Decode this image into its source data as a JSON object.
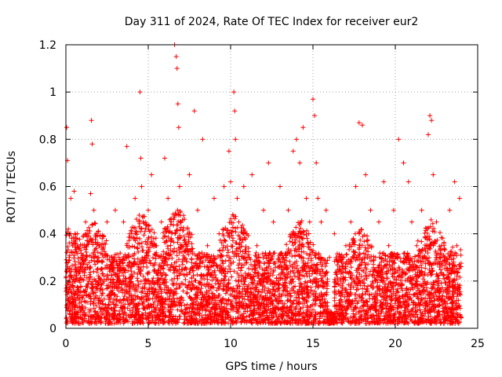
{
  "chart_data": {
    "type": "scatter",
    "title": "Day 311 of 2024, Rate Of TEC Index for receiver eur2",
    "xlabel": "GPS time / hours",
    "ylabel": "ROTI / TECUs",
    "xlim": [
      0,
      25
    ],
    "ylim": [
      0,
      1.2
    ],
    "x_ticks": [
      0,
      5,
      10,
      15,
      20,
      25
    ],
    "y_ticks": [
      0,
      0.2,
      0.4,
      0.6,
      0.8,
      1,
      1.2
    ],
    "x_tick_labels": [
      "0",
      "5",
      "10",
      "15",
      "20",
      "25"
    ],
    "y_tick_labels": [
      "0",
      "0.2",
      "0.4",
      "0.6",
      "0.8",
      "1",
      "1.2"
    ],
    "grid": true,
    "marker": "+",
    "series": [
      {
        "name": "eur2",
        "color": "#ff0000",
        "x": [
          0.05,
          0.1,
          0.15,
          0.2,
          0.25,
          0.3,
          0.35,
          0.4,
          0.5,
          0.6,
          0.7,
          0.8,
          1.0,
          1.2,
          1.5,
          1.55,
          1.6,
          1.7,
          1.8,
          2.0,
          2.2,
          2.5,
          2.8,
          3.0,
          3.2,
          3.5,
          3.7,
          3.8,
          4.0,
          4.2,
          4.4,
          4.5,
          4.55,
          4.6,
          4.7,
          4.8,
          5.0,
          5.2,
          5.5,
          5.8,
          6.0,
          6.2,
          6.4,
          6.6,
          6.7,
          6.75,
          6.8,
          6.85,
          6.9,
          7.0,
          7.2,
          7.5,
          7.8,
          8.0,
          8.3,
          8.6,
          9.0,
          9.3,
          9.6,
          9.9,
          10.0,
          10.2,
          10.25,
          10.3,
          10.4,
          10.5,
          10.8,
          11.0,
          11.3,
          11.6,
          12.0,
          12.3,
          12.6,
          13.0,
          13.2,
          13.5,
          13.8,
          14.0,
          14.2,
          14.4,
          14.6,
          14.8,
          15.0,
          15.1,
          15.2,
          15.3,
          15.5,
          15.8,
          16.0,
          16.3,
          16.6,
          17.0,
          17.3,
          17.6,
          17.8,
          18.0,
          18.2,
          18.5,
          18.8,
          19.0,
          19.3,
          19.6,
          19.9,
          20.2,
          20.5,
          20.8,
          21.0,
          21.3,
          21.6,
          22.0,
          22.1,
          22.2,
          22.3,
          22.5,
          22.8,
          23.0,
          23.3,
          23.6,
          23.9
        ],
        "y": [
          0.85,
          0.71,
          0.42,
          0.3,
          0.22,
          0.55,
          0.15,
          0.35,
          0.58,
          0.25,
          0.4,
          0.12,
          0.3,
          0.45,
          0.57,
          0.88,
          0.78,
          0.5,
          0.2,
          0.35,
          0.28,
          0.45,
          0.3,
          0.5,
          0.2,
          0.45,
          0.77,
          0.3,
          0.4,
          0.55,
          0.25,
          1.0,
          0.72,
          0.6,
          0.45,
          0.3,
          0.5,
          0.65,
          0.35,
          0.45,
          0.72,
          0.55,
          0.38,
          1.2,
          1.15,
          1.1,
          0.95,
          0.85,
          0.6,
          0.45,
          0.3,
          0.65,
          0.92,
          0.5,
          0.8,
          0.35,
          0.55,
          0.4,
          0.6,
          0.75,
          0.62,
          1.0,
          0.92,
          0.8,
          0.55,
          0.45,
          0.6,
          0.4,
          0.65,
          0.35,
          0.5,
          0.7,
          0.45,
          0.6,
          0.3,
          0.5,
          0.75,
          0.8,
          0.7,
          0.85,
          0.55,
          0.45,
          0.97,
          0.9,
          0.7,
          0.55,
          0.45,
          0.5,
          0.3,
          0.4,
          0.25,
          0.35,
          0.45,
          0.6,
          0.87,
          0.86,
          0.65,
          0.5,
          0.3,
          0.45,
          0.62,
          0.35,
          0.5,
          0.8,
          0.7,
          0.62,
          0.45,
          0.35,
          0.5,
          0.82,
          0.9,
          0.88,
          0.65,
          0.45,
          0.35,
          0.3,
          0.5,
          0.62,
          0.55
        ]
      }
    ]
  }
}
